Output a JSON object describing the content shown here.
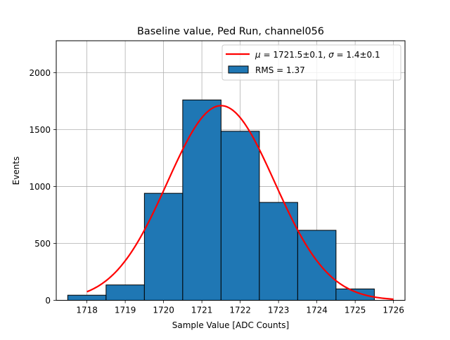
{
  "chart_data": {
    "type": "bar",
    "title": "Baseline value, Ped Run, channel056",
    "xlabel": "Sample Value [ADC Counts]",
    "ylabel": "Events",
    "xlim": [
      1717.2,
      1726.3
    ],
    "ylim": [
      0,
      2280
    ],
    "xticks": [
      1718,
      1719,
      1720,
      1721,
      1722,
      1723,
      1724,
      1725,
      1726
    ],
    "yticks": [
      0,
      500,
      1000,
      1500,
      2000
    ],
    "grid": true,
    "legend_position": "top-right",
    "histogram": {
      "name": "RMS = 1.37",
      "bins": [
        {
          "x0": 1717.5,
          "x1": 1718.5,
          "count": 45
        },
        {
          "x0": 1718.5,
          "x1": 1719.5,
          "count": 135
        },
        {
          "x0": 1719.5,
          "x1": 1720.5,
          "count": 940
        },
        {
          "x0": 1720.5,
          "x1": 1721.5,
          "count": 1760
        },
        {
          "x0": 1721.5,
          "x1": 1722.5,
          "count": 1485
        },
        {
          "x0": 1722.5,
          "x1": 1723.5,
          "count": 860
        },
        {
          "x0": 1723.5,
          "x1": 1724.5,
          "count": 615
        },
        {
          "x0": 1724.5,
          "x1": 1725.5,
          "count": 100
        }
      ],
      "color": "#1f77b4",
      "edge_color": "#000000"
    },
    "fit": {
      "name": "μ = 1721.5±0.1, σ = 1.4±0.1",
      "legend_prefix_mu": "μ",
      "legend_eq1": " = 1721.5±0.1, ",
      "legend_prefix_sigma": "σ",
      "legend_eq2": " = 1.4±0.1",
      "amplitude": 1710,
      "mu": 1721.5,
      "sigma": 1.4,
      "x_range": [
        1718,
        1726
      ],
      "color": "#ff0000"
    }
  }
}
